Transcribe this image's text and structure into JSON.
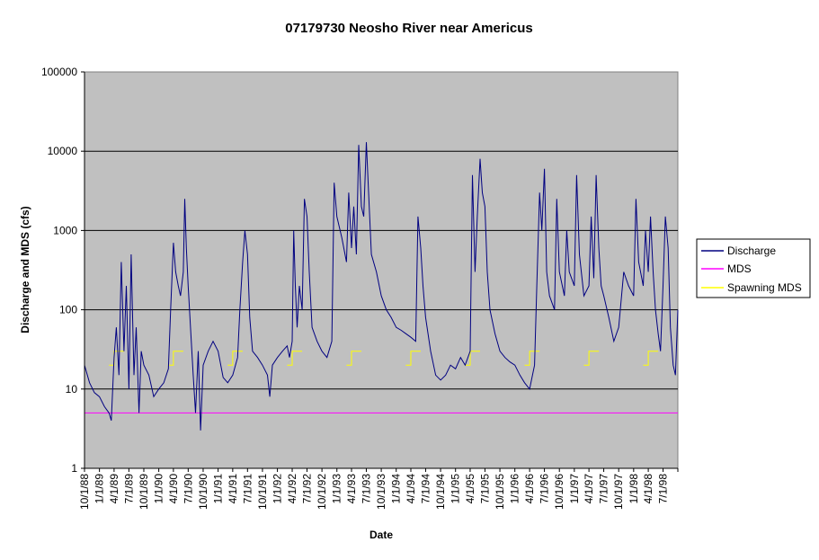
{
  "chart_data": {
    "type": "line",
    "title": "07179730 Neosho River near Americus",
    "xlabel": "Date",
    "ylabel": "Discharge and MDS  (cfs)",
    "yscale": "log",
    "ylim": [
      1,
      100000
    ],
    "xlim": [
      "10/1/88",
      "9/30/98"
    ],
    "y_ticks": [
      "1",
      "10",
      "100",
      "1000",
      "10000",
      "100000"
    ],
    "x_ticks": [
      "10/1/88",
      "1/1/89",
      "4/1/89",
      "7/1/89",
      "10/1/89",
      "1/1/90",
      "4/1/90",
      "7/1/90",
      "10/1/90",
      "1/1/91",
      "4/1/91",
      "7/1/91",
      "10/1/91",
      "1/1/92",
      "4/1/92",
      "7/1/92",
      "10/1/92",
      "1/1/93",
      "4/1/93",
      "7/1/93",
      "10/1/93",
      "1/1/94",
      "4/1/94",
      "7/1/94",
      "10/1/94",
      "1/1/95",
      "4/1/95",
      "7/1/95",
      "10/1/95",
      "1/1/96",
      "4/1/96",
      "7/1/96",
      "10/1/96",
      "1/1/97",
      "4/1/97",
      "7/1/97",
      "10/1/97",
      "1/1/98",
      "4/1/98",
      "7/1/98"
    ],
    "grid": "horizontal major gridlines",
    "plot_background": "#c0c0c0",
    "legend_position": "right",
    "series": [
      {
        "name": "Discharge",
        "color": "#000080",
        "points": [
          [
            "10/1/88",
            20
          ],
          [
            "11/1/88",
            12
          ],
          [
            "12/1/88",
            9
          ],
          [
            "1/1/89",
            8
          ],
          [
            "2/1/89",
            6
          ],
          [
            "3/1/89",
            5
          ],
          [
            "3/15/89",
            4
          ],
          [
            "4/1/89",
            25
          ],
          [
            "4/15/89",
            60
          ],
          [
            "5/1/89",
            15
          ],
          [
            "5/15/89",
            400
          ],
          [
            "6/1/89",
            30
          ],
          [
            "6/15/89",
            200
          ],
          [
            "7/1/89",
            10
          ],
          [
            "7/15/89",
            500
          ],
          [
            "8/1/89",
            15
          ],
          [
            "8/15/89",
            60
          ],
          [
            "9/1/89",
            5
          ],
          [
            "9/15/89",
            30
          ],
          [
            "10/1/89",
            20
          ],
          [
            "11/1/89",
            15
          ],
          [
            "12/1/89",
            8
          ],
          [
            "1/1/90",
            10
          ],
          [
            "2/1/90",
            12
          ],
          [
            "3/1/90",
            18
          ],
          [
            "3/15/90",
            100
          ],
          [
            "4/1/90",
            700
          ],
          [
            "4/15/90",
            300
          ],
          [
            "5/1/90",
            200
          ],
          [
            "5/15/90",
            150
          ],
          [
            "6/1/90",
            300
          ],
          [
            "6/10/90",
            2500
          ],
          [
            "6/20/90",
            600
          ],
          [
            "7/1/90",
            200
          ],
          [
            "7/15/90",
            60
          ],
          [
            "8/1/90",
            15
          ],
          [
            "8/15/90",
            5
          ],
          [
            "9/1/90",
            30
          ],
          [
            "9/15/90",
            3
          ],
          [
            "10/1/90",
            20
          ],
          [
            "11/1/90",
            30
          ],
          [
            "12/1/90",
            40
          ],
          [
            "1/1/91",
            30
          ],
          [
            "2/1/91",
            14
          ],
          [
            "3/1/91",
            12
          ],
          [
            "4/1/91",
            15
          ],
          [
            "5/1/91",
            25
          ],
          [
            "5/15/91",
            100
          ],
          [
            "6/1/91",
            400
          ],
          [
            "6/15/91",
            1000
          ],
          [
            "7/1/91",
            500
          ],
          [
            "7/15/91",
            80
          ],
          [
            "8/1/91",
            30
          ],
          [
            "9/1/91",
            25
          ],
          [
            "10/1/91",
            20
          ],
          [
            "11/1/91",
            15
          ],
          [
            "11/15/91",
            8
          ],
          [
            "12/1/91",
            20
          ],
          [
            "1/1/92",
            25
          ],
          [
            "2/1/92",
            30
          ],
          [
            "3/1/92",
            35
          ],
          [
            "3/15/92",
            25
          ],
          [
            "4/1/92",
            40
          ],
          [
            "4/10/92",
            1000
          ],
          [
            "4/20/92",
            200
          ],
          [
            "5/1/92",
            60
          ],
          [
            "5/15/92",
            200
          ],
          [
            "6/1/92",
            100
          ],
          [
            "6/15/92",
            2500
          ],
          [
            "7/1/92",
            1500
          ],
          [
            "7/15/92",
            300
          ],
          [
            "8/1/92",
            60
          ],
          [
            "9/1/92",
            40
          ],
          [
            "10/1/92",
            30
          ],
          [
            "11/1/92",
            25
          ],
          [
            "12/1/92",
            40
          ],
          [
            "12/15/92",
            4000
          ],
          [
            "1/1/93",
            1500
          ],
          [
            "2/1/93",
            800
          ],
          [
            "3/1/93",
            400
          ],
          [
            "3/15/93",
            3000
          ],
          [
            "4/1/93",
            600
          ],
          [
            "4/15/93",
            2000
          ],
          [
            "5/1/93",
            500
          ],
          [
            "5/15/93",
            12000
          ],
          [
            "6/1/93",
            2000
          ],
          [
            "6/15/93",
            1500
          ],
          [
            "7/1/93",
            13000
          ],
          [
            "7/15/93",
            3000
          ],
          [
            "8/1/93",
            500
          ],
          [
            "9/1/93",
            300
          ],
          [
            "10/1/93",
            150
          ],
          [
            "11/1/93",
            100
          ],
          [
            "12/1/93",
            80
          ],
          [
            "1/1/94",
            60
          ],
          [
            "2/1/94",
            55
          ],
          [
            "3/1/94",
            50
          ],
          [
            "4/1/94",
            45
          ],
          [
            "5/1/94",
            40
          ],
          [
            "5/15/94",
            1500
          ],
          [
            "6/1/94",
            600
          ],
          [
            "6/15/94",
            200
          ],
          [
            "7/1/94",
            80
          ],
          [
            "8/1/94",
            30
          ],
          [
            "9/1/94",
            15
          ],
          [
            "10/1/94",
            13
          ],
          [
            "11/1/94",
            15
          ],
          [
            "12/1/94",
            20
          ],
          [
            "1/1/95",
            18
          ],
          [
            "2/1/95",
            25
          ],
          [
            "3/1/95",
            20
          ],
          [
            "4/1/95",
            30
          ],
          [
            "4/15/95",
            5000
          ],
          [
            "5/1/95",
            300
          ],
          [
            "5/15/95",
            1500
          ],
          [
            "6/1/95",
            8000
          ],
          [
            "6/15/95",
            3000
          ],
          [
            "7/1/95",
            2000
          ],
          [
            "7/15/95",
            300
          ],
          [
            "8/1/95",
            100
          ],
          [
            "9/1/95",
            50
          ],
          [
            "10/1/95",
            30
          ],
          [
            "11/1/95",
            25
          ],
          [
            "12/1/95",
            22
          ],
          [
            "1/1/96",
            20
          ],
          [
            "2/1/96",
            15
          ],
          [
            "3/1/96",
            12
          ],
          [
            "4/1/96",
            10
          ],
          [
            "5/1/96",
            20
          ],
          [
            "5/15/96",
            200
          ],
          [
            "6/1/96",
            3000
          ],
          [
            "6/15/96",
            1000
          ],
          [
            "7/1/96",
            6000
          ],
          [
            "7/15/96",
            300
          ],
          [
            "8/1/96",
            150
          ],
          [
            "9/1/96",
            100
          ],
          [
            "9/15/96",
            2500
          ],
          [
            "10/1/96",
            300
          ],
          [
            "11/1/96",
            150
          ],
          [
            "11/15/96",
            1000
          ],
          [
            "12/1/96",
            300
          ],
          [
            "1/1/97",
            200
          ],
          [
            "1/15/97",
            5000
          ],
          [
            "2/1/97",
            500
          ],
          [
            "3/1/97",
            150
          ],
          [
            "4/1/97",
            200
          ],
          [
            "4/15/97",
            1500
          ],
          [
            "5/1/97",
            250
          ],
          [
            "5/15/97",
            5000
          ],
          [
            "6/1/97",
            600
          ],
          [
            "6/15/97",
            200
          ],
          [
            "7/1/97",
            150
          ],
          [
            "8/1/97",
            80
          ],
          [
            "9/1/97",
            40
          ],
          [
            "10/1/97",
            60
          ],
          [
            "11/1/97",
            300
          ],
          [
            "12/1/97",
            200
          ],
          [
            "1/1/98",
            150
          ],
          [
            "1/15/98",
            2500
          ],
          [
            "2/1/98",
            400
          ],
          [
            "3/1/98",
            200
          ],
          [
            "3/15/98",
            1000
          ],
          [
            "4/1/98",
            300
          ],
          [
            "4/15/98",
            1500
          ],
          [
            "5/1/98",
            300
          ],
          [
            "5/15/98",
            100
          ],
          [
            "6/1/98",
            50
          ],
          [
            "6/15/98",
            30
          ],
          [
            "7/1/98",
            200
          ],
          [
            "7/15/98",
            1500
          ],
          [
            "8/1/98",
            600
          ],
          [
            "8/15/98",
            60
          ],
          [
            "9/1/98",
            20
          ],
          [
            "9/15/98",
            15
          ],
          [
            "9/30/98",
            100
          ]
        ]
      },
      {
        "name": "MDS",
        "color": "#ff00ff",
        "points": [
          [
            "10/1/88",
            5
          ],
          [
            "9/30/98",
            5
          ]
        ]
      },
      {
        "name": "Spawning MDS",
        "color": "#ffff00",
        "segments": [
          [
            [
              "3/1/89",
              20
            ],
            [
              "4/1/89",
              30
            ],
            [
              "6/1/89",
              30
            ]
          ],
          [
            [
              "3/1/90",
              20
            ],
            [
              "4/1/90",
              30
            ],
            [
              "6/1/90",
              30
            ]
          ],
          [
            [
              "3/1/91",
              20
            ],
            [
              "4/1/91",
              30
            ],
            [
              "6/1/91",
              30
            ]
          ],
          [
            [
              "3/1/92",
              20
            ],
            [
              "4/1/92",
              30
            ],
            [
              "6/1/92",
              30
            ]
          ],
          [
            [
              "3/1/93",
              20
            ],
            [
              "4/1/93",
              30
            ],
            [
              "6/1/93",
              30
            ]
          ],
          [
            [
              "3/1/94",
              20
            ],
            [
              "4/1/94",
              30
            ],
            [
              "6/1/94",
              30
            ]
          ],
          [
            [
              "3/1/95",
              20
            ],
            [
              "4/1/95",
              30
            ],
            [
              "6/1/95",
              30
            ]
          ],
          [
            [
              "3/1/96",
              20
            ],
            [
              "4/1/96",
              30
            ],
            [
              "6/1/96",
              30
            ]
          ],
          [
            [
              "3/1/97",
              20
            ],
            [
              "4/1/97",
              30
            ],
            [
              "6/1/97",
              30
            ]
          ],
          [
            [
              "3/1/98",
              20
            ],
            [
              "4/1/98",
              30
            ],
            [
              "6/1/98",
              30
            ]
          ]
        ]
      }
    ]
  }
}
